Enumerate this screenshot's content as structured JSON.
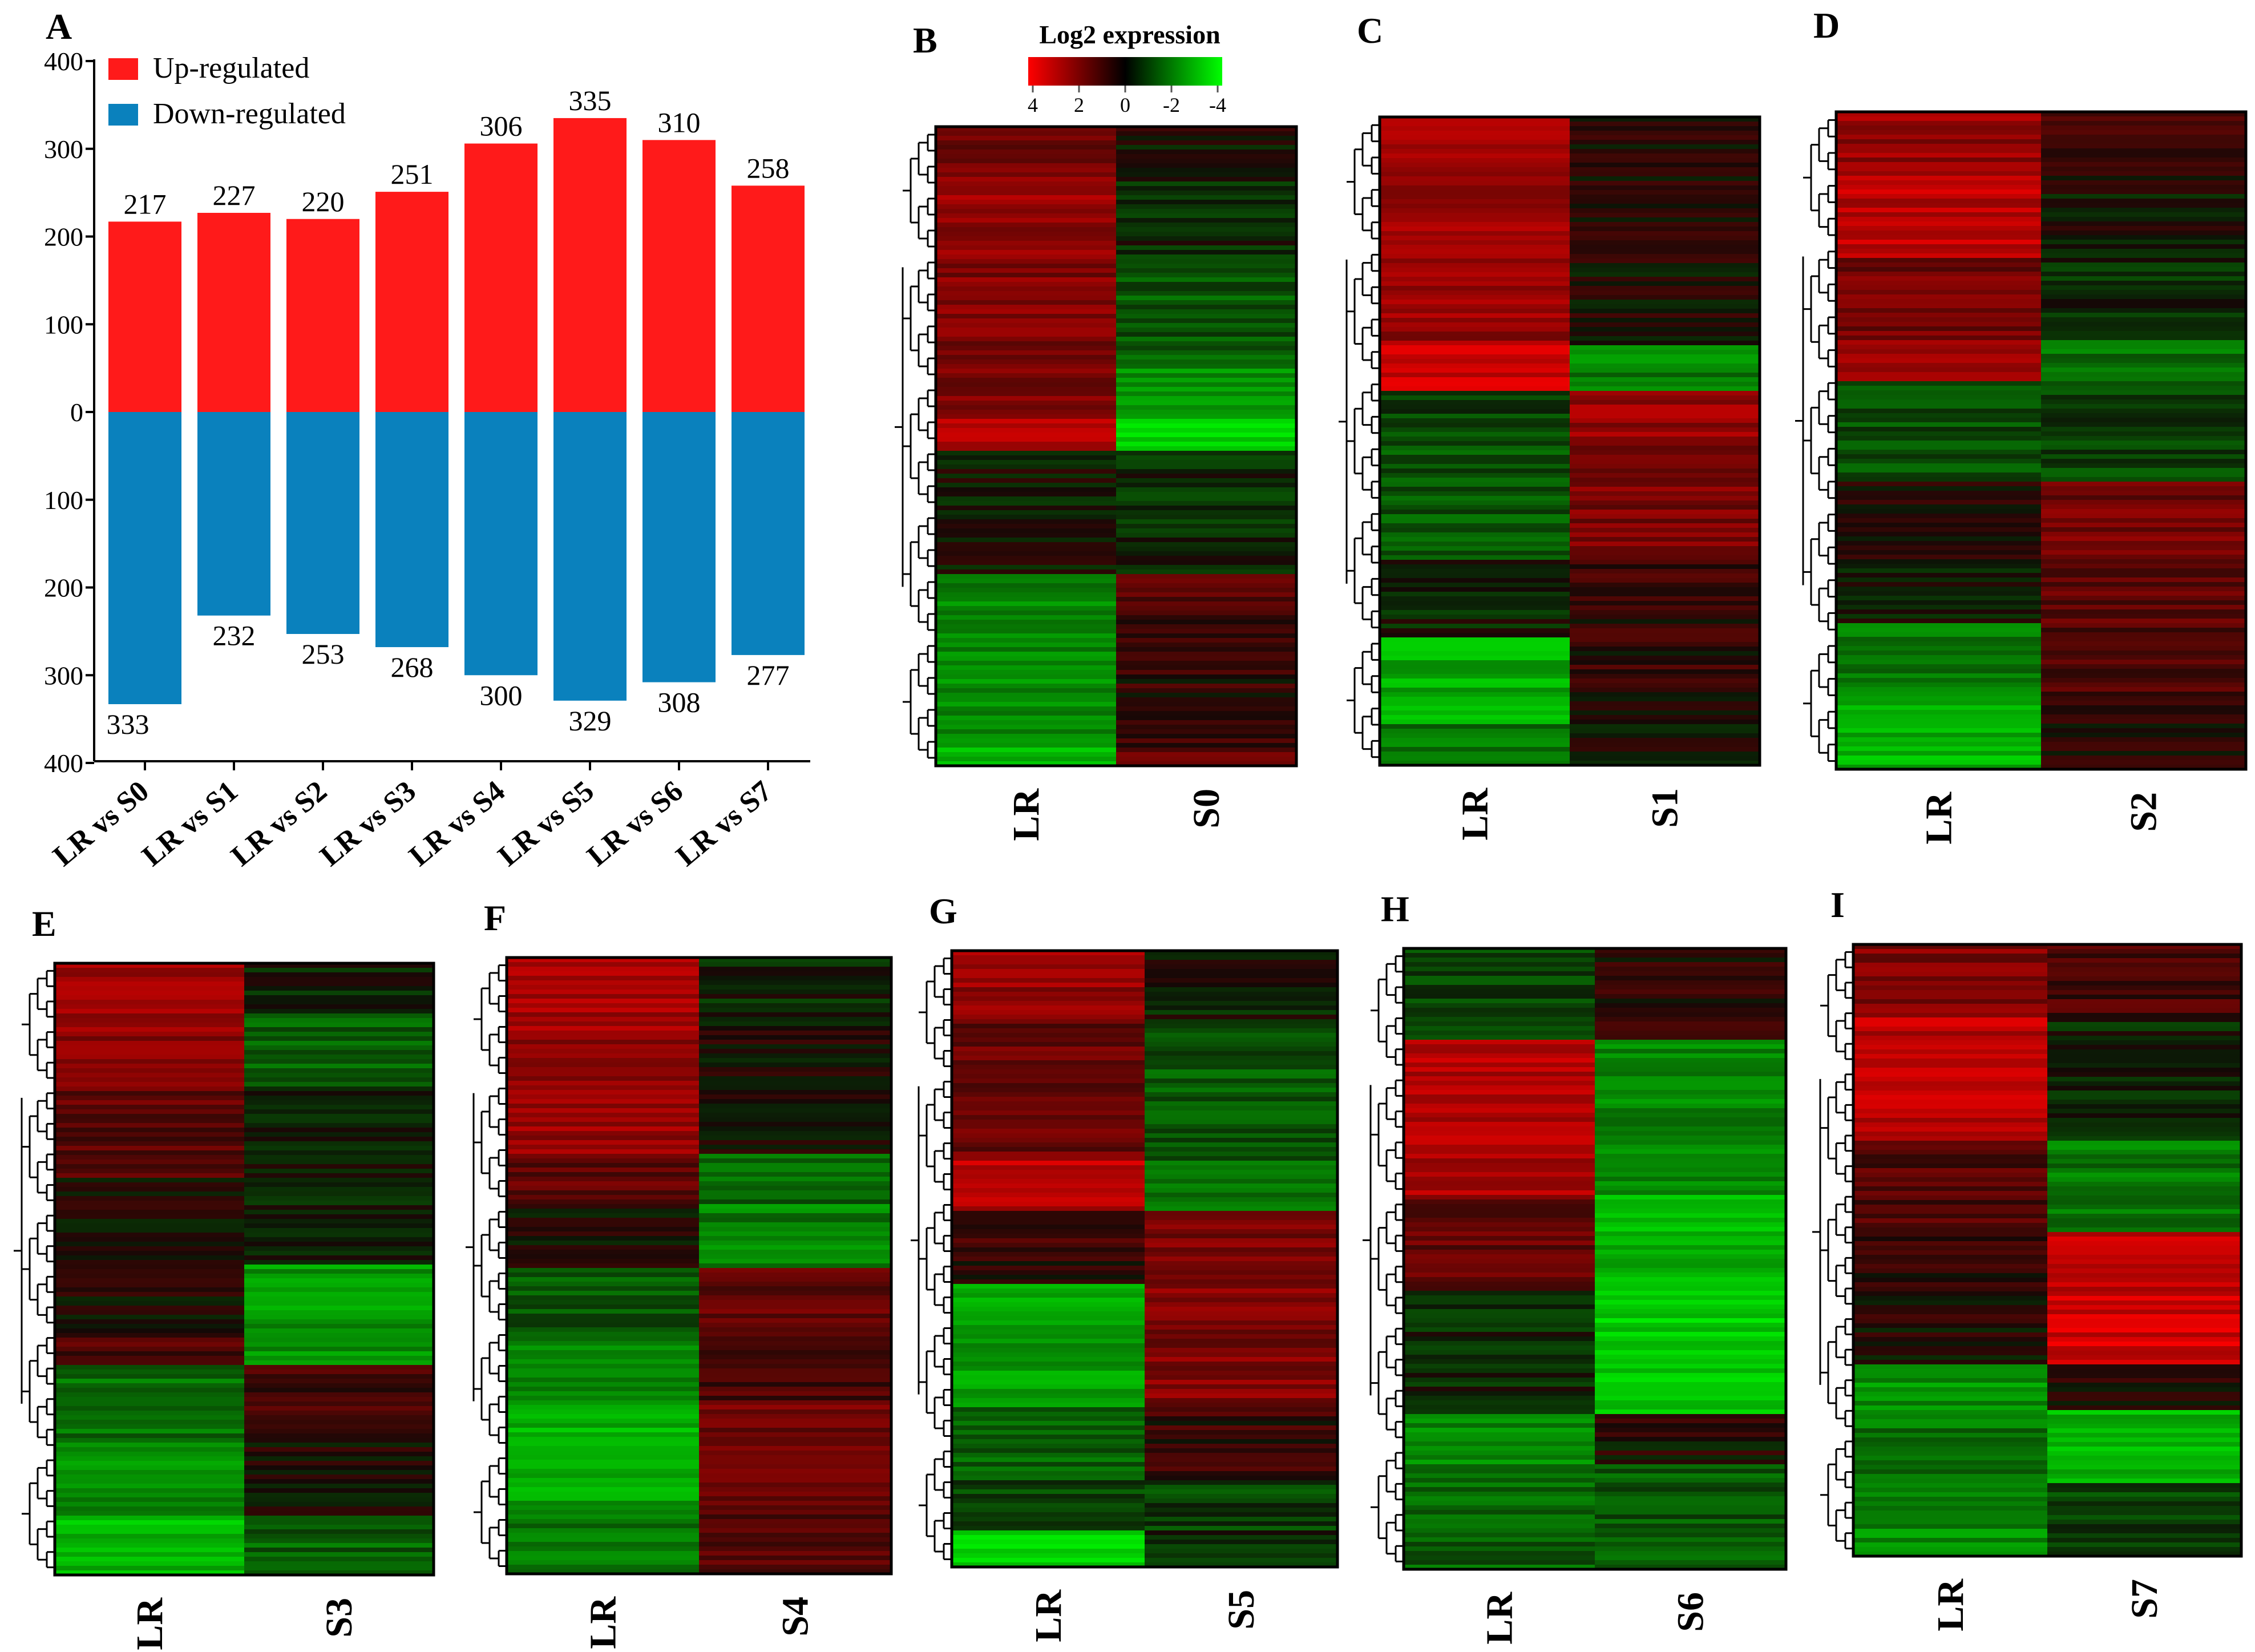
{
  "chart_data": [
    {
      "panel": "A",
      "type": "bar",
      "subtype": "diverging-stacked",
      "categories": [
        "LR vs S0",
        "LR vs S1",
        "LR vs S2",
        "LR vs S3",
        "LR vs S4",
        "LR vs S5",
        "LR vs S6",
        "LR vs S7"
      ],
      "series": [
        {
          "name": "Up-regulated",
          "color": "#ff1a1a",
          "values": [
            217,
            227,
            220,
            251,
            306,
            335,
            310,
            258
          ]
        },
        {
          "name": "Down-regulated",
          "color": "#0a81bd",
          "values": [
            333,
            232,
            253,
            268,
            300,
            329,
            308,
            277
          ]
        }
      ],
      "yticks": [
        "400",
        "300",
        "200",
        "100",
        "0",
        "100",
        "200",
        "300",
        "400"
      ],
      "ylim": [
        -400,
        400
      ],
      "legend_position": "top-left"
    },
    {
      "type": "heatmap",
      "title": "Log2 expression",
      "colorbar": {
        "ticks": [
          "4",
          "2",
          "0",
          "-2",
          "-4"
        ],
        "colors": [
          "#ff0000",
          "#000000",
          "#00ff00"
        ]
      },
      "panels": [
        {
          "panel": "B",
          "columns": [
            "LR",
            "S0"
          ]
        },
        {
          "panel": "C",
          "columns": [
            "LR",
            "S1"
          ]
        },
        {
          "panel": "D",
          "columns": [
            "LR",
            "S2"
          ]
        },
        {
          "panel": "E",
          "columns": [
            "LR",
            "S3"
          ]
        },
        {
          "panel": "F",
          "columns": [
            "LR",
            "S4"
          ]
        },
        {
          "panel": "G",
          "columns": [
            "LR",
            "S5"
          ]
        },
        {
          "panel": "H",
          "columns": [
            "LR",
            "S6"
          ]
        },
        {
          "panel": "I",
          "columns": [
            "LR",
            "S7"
          ]
        }
      ]
    }
  ]
}
